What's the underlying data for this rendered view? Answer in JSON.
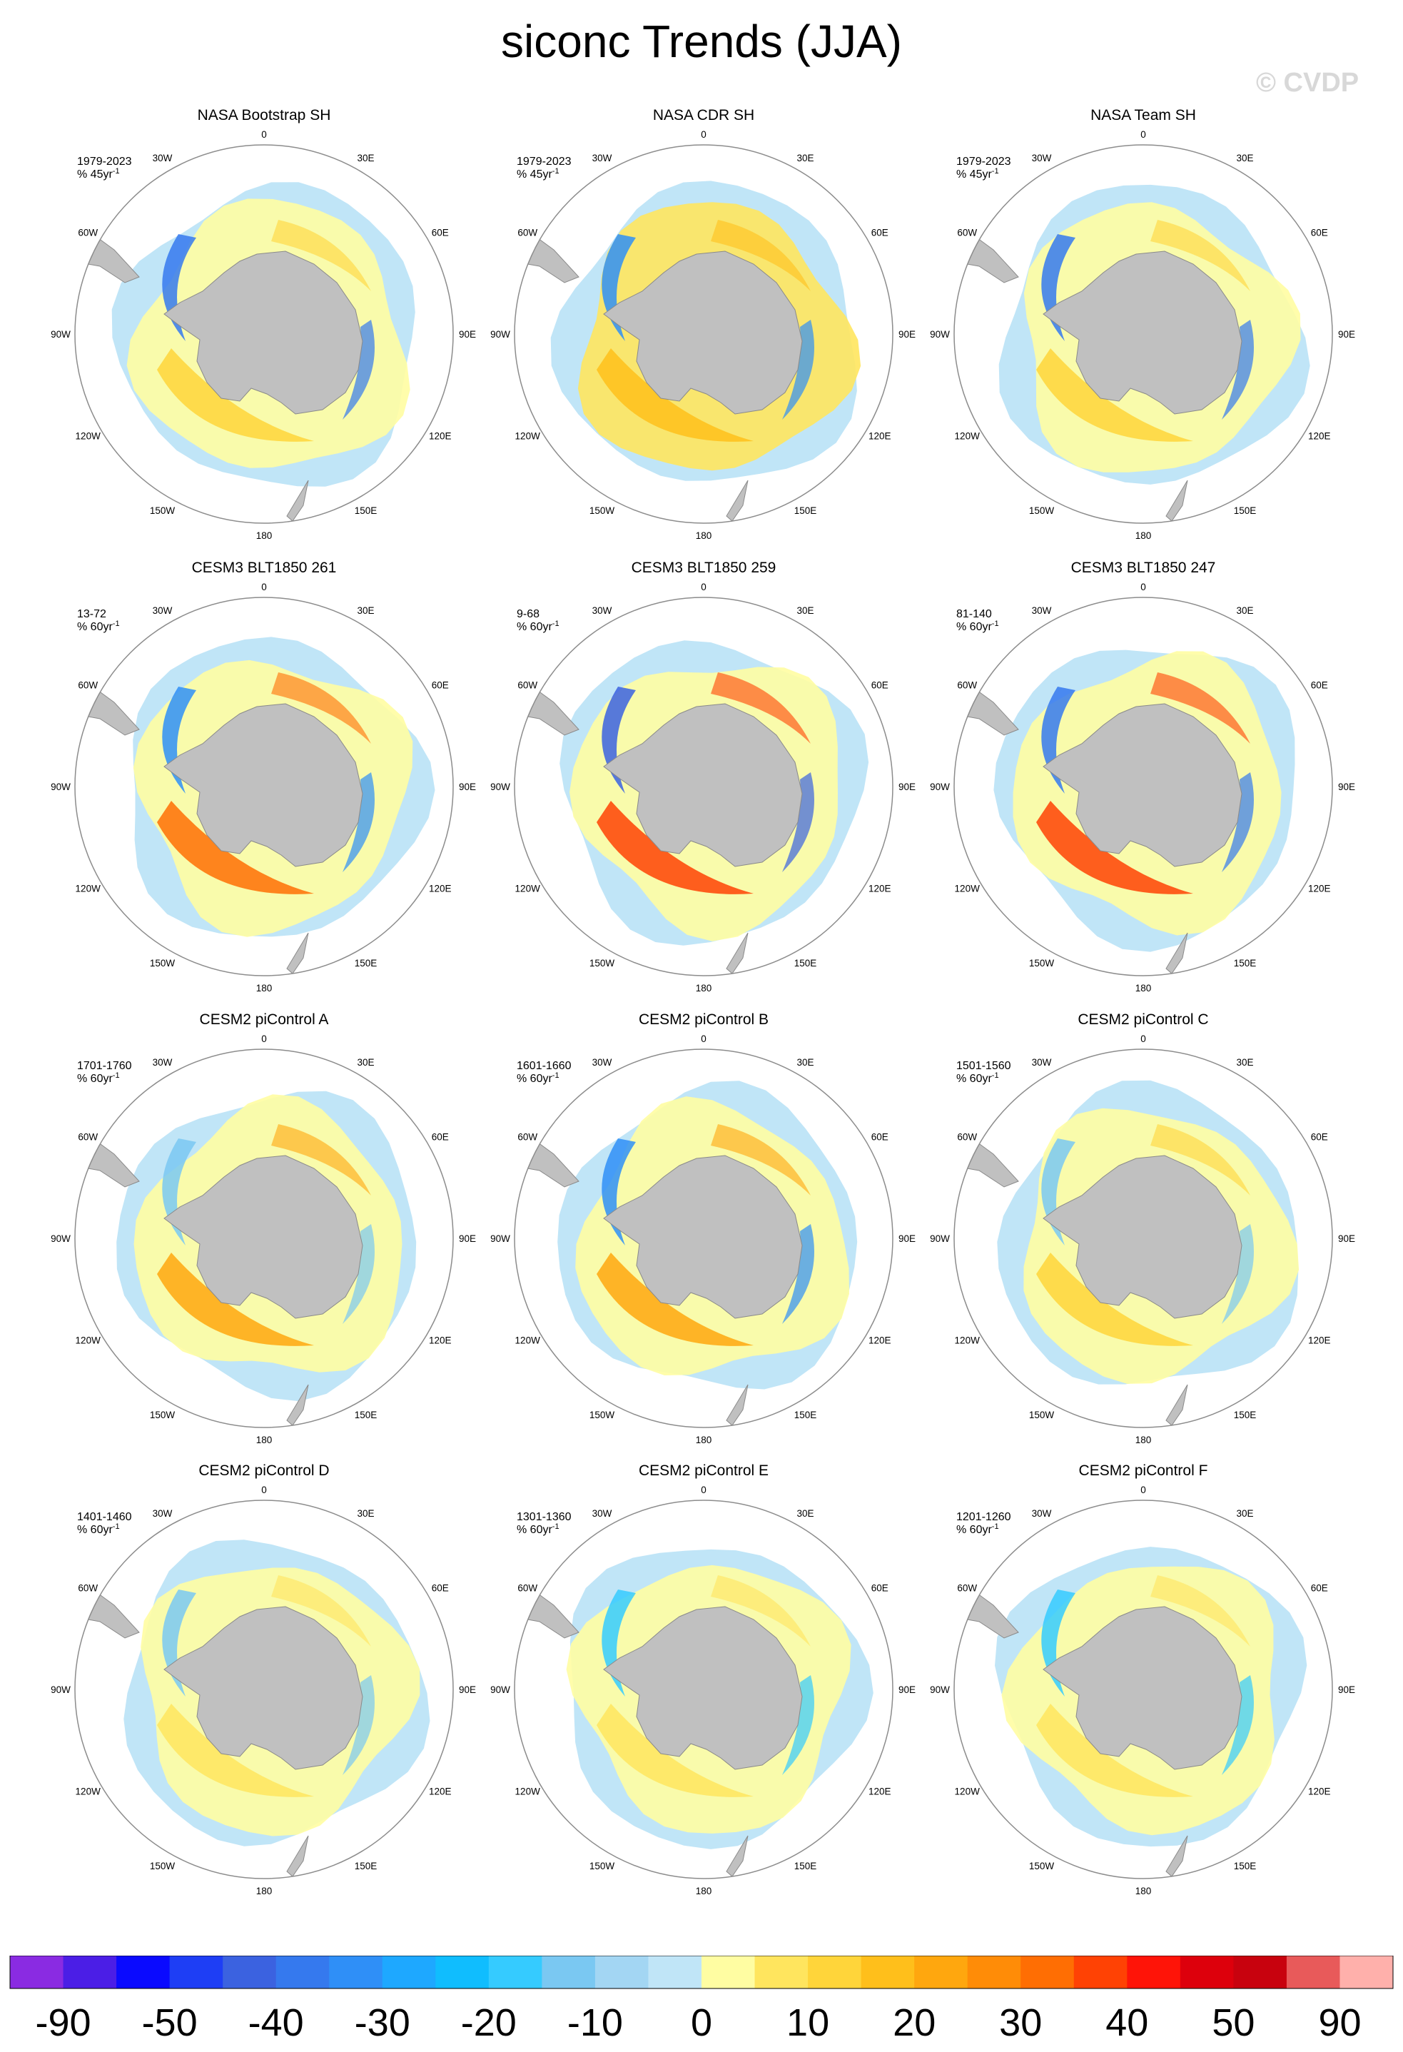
{
  "title": "siconc Trends (JJA)",
  "watermark": "© CVDP",
  "longitude_labels": [
    "0",
    "30E",
    "60E",
    "90E",
    "120E",
    "150E",
    "180",
    "150W",
    "120W",
    "90W",
    "60W",
    "30W"
  ],
  "panels": [
    {
      "title": "NASA Bootstrap SH",
      "period": "1979-2023",
      "units_prefix": "% 45yr",
      "units_exp": "-1"
    },
    {
      "title": "NASA CDR SH",
      "period": "1979-2023",
      "units_prefix": "% 45yr",
      "units_exp": "-1"
    },
    {
      "title": "NASA Team SH",
      "period": "1979-2023",
      "units_prefix": "% 45yr",
      "units_exp": "-1"
    },
    {
      "title": "CESM3 BLT1850 261",
      "period": "13-72",
      "units_prefix": "% 60yr",
      "units_exp": "-1"
    },
    {
      "title": "CESM3 BLT1850 259",
      "period": "9-68",
      "units_prefix": "% 60yr",
      "units_exp": "-1"
    },
    {
      "title": "CESM3 BLT1850 247",
      "period": "81-140",
      "units_prefix": "% 60yr",
      "units_exp": "-1"
    },
    {
      "title": "CESM2 piControl A",
      "period": "1701-1760",
      "units_prefix": "% 60yr",
      "units_exp": "-1"
    },
    {
      "title": "CESM2 piControl B",
      "period": "1601-1660",
      "units_prefix": "% 60yr",
      "units_exp": "-1"
    },
    {
      "title": "CESM2 piControl C",
      "period": "1501-1560",
      "units_prefix": "% 60yr",
      "units_exp": "-1"
    },
    {
      "title": "CESM2 piControl D",
      "period": "1401-1460",
      "units_prefix": "% 60yr",
      "units_exp": "-1"
    },
    {
      "title": "CESM2 piControl E",
      "period": "1301-1360",
      "units_prefix": "% 60yr",
      "units_exp": "-1"
    },
    {
      "title": "CESM2 piControl F",
      "period": "1201-1260",
      "units_prefix": "% 60yr",
      "units_exp": "-1"
    }
  ],
  "colorbar": {
    "colors": [
      "#8a2be2",
      "#4b1ee6",
      "#0a0aff",
      "#1e3ef5",
      "#3b62e0",
      "#3579ee",
      "#2f8ff7",
      "#1ea8ff",
      "#10bdfe",
      "#35cbff",
      "#7ac8f2",
      "#a3d6f3",
      "#c0e5f7",
      "#fffda2",
      "#ffe55e",
      "#ffd53a",
      "#ffbf1b",
      "#ffa70e",
      "#ff8c07",
      "#ff6e03",
      "#ff4204",
      "#ff1408",
      "#dd000c",
      "#c8020e",
      "#e85a5a",
      "#ffb0ab"
    ],
    "labels": [
      "-90",
      "-50",
      "-40",
      "-30",
      "-20",
      "-10",
      "0",
      "10",
      "20",
      "30",
      "40",
      "50",
      "90"
    ]
  }
}
